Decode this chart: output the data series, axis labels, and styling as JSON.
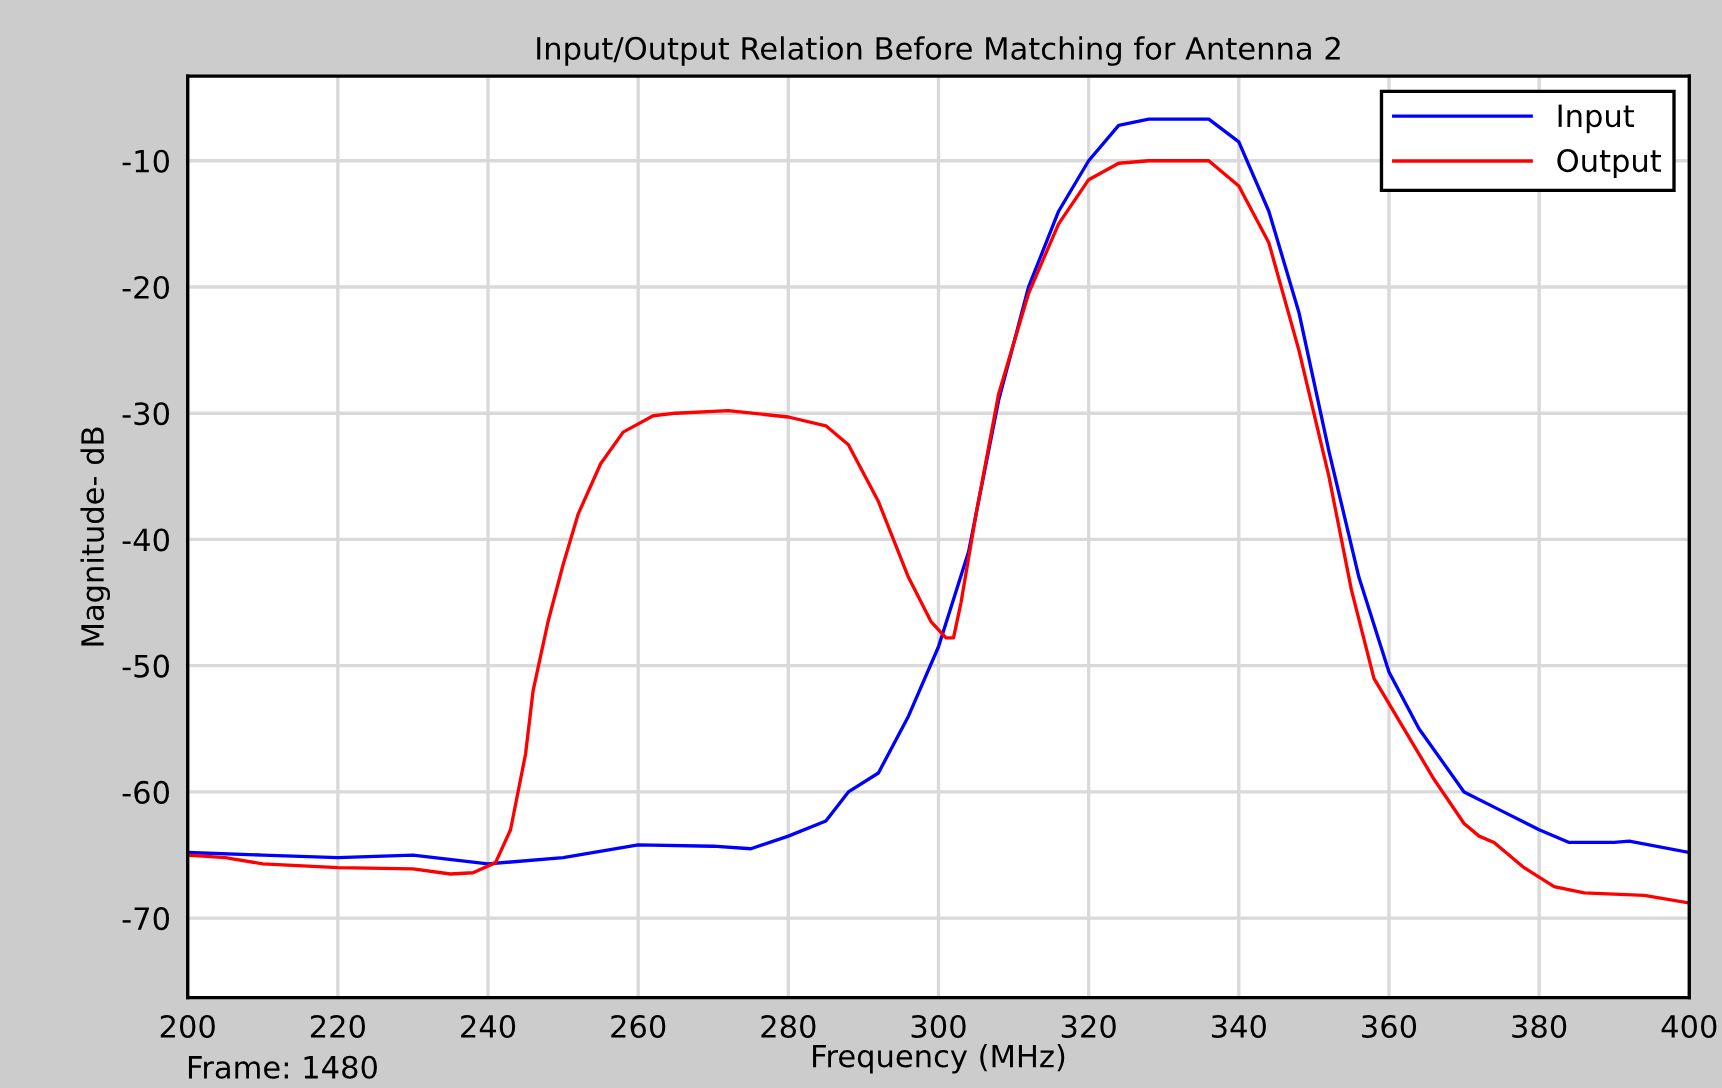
{
  "chart_data": {
    "type": "line",
    "title": "Input/Output Relation Before Matching for Antenna 2",
    "xlabel": "Frequency (MHz)",
    "ylabel": "Magnitude- dB",
    "annotations": [
      "Frame: 1480"
    ],
    "xlim": [
      200,
      400
    ],
    "xticks": [
      200,
      220,
      240,
      260,
      280,
      300,
      320,
      340,
      360,
      380,
      400
    ],
    "ylim": [
      -76.3,
      -3.3
    ],
    "yticks": [
      -70,
      -60,
      -50,
      -40,
      -30,
      -20,
      -10
    ],
    "grid": true,
    "legend": "top right",
    "line_style": "solid",
    "marker": "none",
    "series": [
      {
        "name": "Input",
        "color": "#0000ff",
        "x": [
          200,
          210,
          220,
          230,
          240,
          250,
          260,
          270,
          275,
          280,
          285,
          288,
          292,
          296,
          300,
          304,
          308,
          312,
          316,
          320,
          324,
          328,
          336,
          340,
          344,
          348,
          352,
          356,
          360,
          364,
          370,
          375,
          380,
          384,
          390,
          392,
          400
        ],
        "values": [
          -64.8,
          -65,
          -65.2,
          -65,
          -65.7,
          -65.2,
          -64.2,
          -64.3,
          -64.5,
          -63.5,
          -62.3,
          -60,
          -58.5,
          -54,
          -48.5,
          -41,
          -29,
          -20,
          -14,
          -10,
          -7.2,
          -6.7,
          -6.7,
          -8.5,
          -14,
          -22,
          -33,
          -43,
          -50.5,
          -55,
          -60,
          -61.5,
          -63,
          -64,
          -64,
          -63.9,
          -64.8
        ]
      },
      {
        "name": "Output",
        "color": "#ff0000",
        "x": [
          200,
          205,
          210,
          220,
          230,
          235,
          238,
          241,
          243,
          245,
          246,
          248,
          250,
          252,
          255,
          258,
          262,
          265,
          272,
          280,
          285,
          288,
          292,
          296,
          299,
          301,
          302,
          303,
          305,
          308,
          312,
          316,
          320,
          324,
          328,
          336,
          340,
          344,
          348,
          352,
          355,
          358,
          362,
          366,
          370,
          372,
          374,
          378,
          382,
          386,
          390,
          394,
          400
        ],
        "values": [
          -65,
          -65.2,
          -65.7,
          -66,
          -66.1,
          -66.5,
          -66.4,
          -65.6,
          -63,
          -57,
          -52,
          -46.5,
          -42,
          -38,
          -34,
          -31.5,
          -30.2,
          -30,
          -29.8,
          -30.3,
          -31,
          -32.5,
          -37,
          -43,
          -46.5,
          -47.8,
          -47.8,
          -45,
          -38,
          -28.5,
          -20.5,
          -15,
          -11.5,
          -10.2,
          -10,
          -10,
          -12,
          -16.5,
          -25,
          -35,
          -44,
          -51,
          -55,
          -59,
          -62.5,
          -63.5,
          -64,
          -66,
          -67.5,
          -68,
          -68.1,
          -68.2,
          -68.8
        ]
      }
    ]
  }
}
